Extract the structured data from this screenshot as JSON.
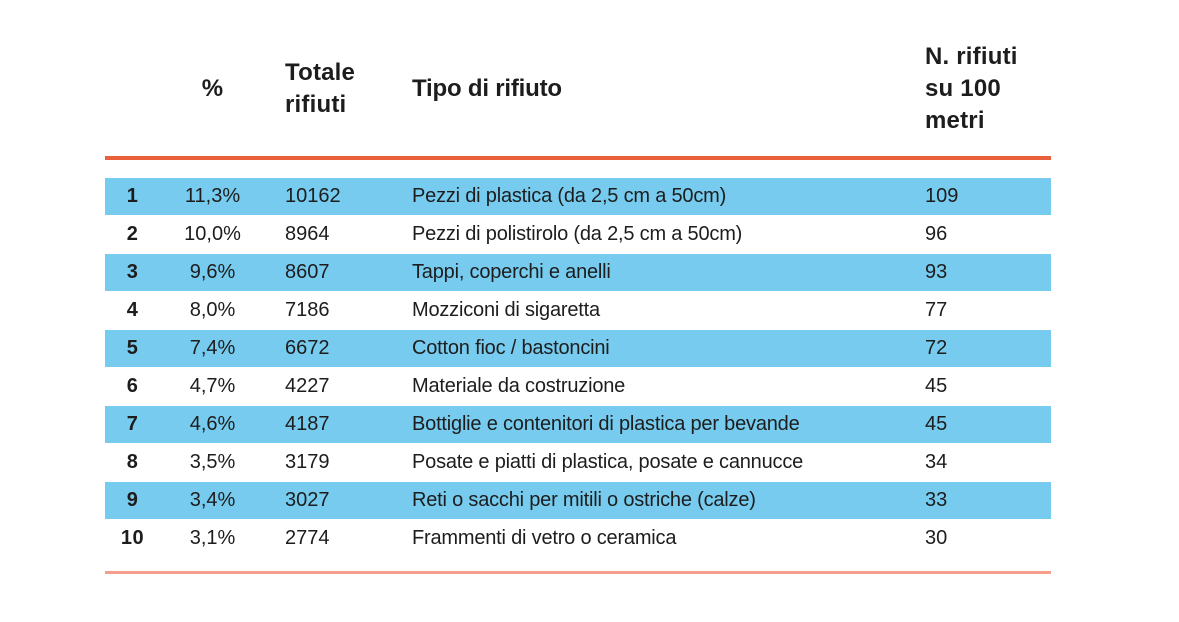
{
  "chart_data": {
    "type": "table",
    "title": "",
    "columns": [
      "rank",
      "%",
      "Totale rifiuti",
      "Tipo di rifiuto",
      "N. rifiuti su 100 metri"
    ],
    "rows": [
      {
        "rank": "1",
        "percent": "11,3%",
        "total": "10162",
        "type": "Pezzi di plastica (da 2,5 cm a 50cm)",
        "per100m": "109"
      },
      {
        "rank": "2",
        "percent": "10,0%",
        "total": "8964",
        "type": "Pezzi di polistirolo (da 2,5 cm a 50cm)",
        "per100m": "96"
      },
      {
        "rank": "3",
        "percent": "9,6%",
        "total": "8607",
        "type": "Tappi, coperchi e anelli",
        "per100m": "93"
      },
      {
        "rank": "4",
        "percent": "8,0%",
        "total": "7186",
        "type": "Mozziconi di sigaretta",
        "per100m": "77"
      },
      {
        "rank": "5",
        "percent": "7,4%",
        "total": "6672",
        "type": "Cotton fioc / bastoncini",
        "per100m": "72"
      },
      {
        "rank": "6",
        "percent": "4,7%",
        "total": "4227",
        "type": "Materiale da costruzione",
        "per100m": "45"
      },
      {
        "rank": "7",
        "percent": "4,6%",
        "total": "4187",
        "type": "Bottiglie e contenitori di plastica per bevande",
        "per100m": "45"
      },
      {
        "rank": "8",
        "percent": "3,5%",
        "total": "3179",
        "type": "Posate e piatti di plastica, posate e cannucce",
        "per100m": "34"
      },
      {
        "rank": "9",
        "percent": "3,4%",
        "total": "3027",
        "type": "Reti o sacchi per mitili o ostriche (calze)",
        "per100m": "33"
      },
      {
        "rank": "10",
        "percent": "3,1%",
        "total": "2774",
        "type": "Frammenti di vetro o ceramica",
        "per100m": "30"
      }
    ]
  },
  "table": {
    "headers": {
      "rank": "",
      "percent": "%",
      "total": "Totale rifiuti",
      "type": "Tipo di rifiuto",
      "per100m": "N. rifiuti su 100 metri"
    }
  },
  "colors": {
    "row_highlight": "#76CBEE",
    "header_rule": "#E9603C",
    "footer_rule": "#F59E8B",
    "text": "#1d1d1d"
  }
}
